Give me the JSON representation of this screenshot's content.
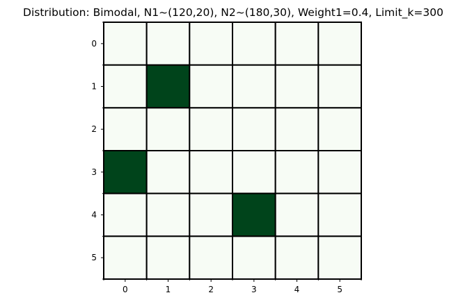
{
  "chart_data": {
    "type": "heatmap",
    "title": "Distribution: Bimodal, N1~(120,20), N2~(180,30), Weight1=0.4, Limit_k=300",
    "xlabel": "",
    "ylabel": "",
    "x_ticks": [
      "0",
      "1",
      "2",
      "3",
      "4",
      "5"
    ],
    "y_ticks": [
      "0",
      "1",
      "2",
      "3",
      "4",
      "5"
    ],
    "values": [
      [
        0,
        0,
        0,
        0,
        0,
        0
      ],
      [
        0,
        1,
        0,
        0,
        0,
        0
      ],
      [
        0,
        0,
        0,
        0,
        0,
        0
      ],
      [
        1,
        0,
        0,
        0,
        0,
        0
      ],
      [
        0,
        0,
        0,
        1,
        0,
        0
      ],
      [
        0,
        0,
        0,
        0,
        0,
        0
      ]
    ],
    "colormap": {
      "low": "#f7fcf5",
      "high": "#00441b"
    },
    "cell_border_color": "#000000",
    "grid": true
  }
}
